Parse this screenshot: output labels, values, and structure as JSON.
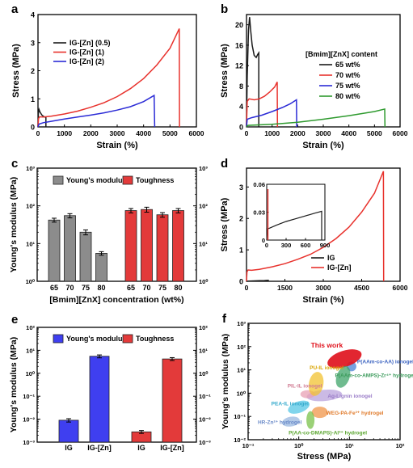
{
  "colors": {
    "black": "#1a1a1a",
    "red": "#e8322d",
    "blue": "#2b2bd6",
    "green": "#2e9a2e",
    "grey": "#8c8c8c",
    "red_bar": "#e33a3a",
    "blue_bar": "#3f3ff0"
  },
  "chart_data": [
    {
      "panel": "a",
      "type": "line",
      "xlabel": "Strain (%)",
      "ylabel": "Stress (MPa)",
      "xlim": [
        0,
        6000
      ],
      "ylim": [
        0,
        4
      ],
      "xticks": [
        0,
        1000,
        2000,
        3000,
        4000,
        5000,
        6000
      ],
      "yticks": [
        0,
        1,
        2,
        3,
        4
      ],
      "legend_position": "top-left",
      "series": [
        {
          "name": "IG-[Zn] (0.5)",
          "color_key": "black",
          "points": [
            [
              0,
              0
            ],
            [
              15,
              0.5
            ],
            [
              40,
              0.62
            ],
            [
              80,
              0.52
            ],
            [
              150,
              0.42
            ],
            [
              230,
              0.36
            ],
            [
              300,
              0.34
            ],
            [
              300,
              0
            ]
          ]
        },
        {
          "name": "IG-[Zn] (1)",
          "color_key": "red",
          "points": [
            [
              0,
              0
            ],
            [
              20,
              0.3
            ],
            [
              60,
              0.36
            ],
            [
              200,
              0.35
            ],
            [
              500,
              0.38
            ],
            [
              1000,
              0.46
            ],
            [
              1500,
              0.56
            ],
            [
              2000,
              0.7
            ],
            [
              2500,
              0.86
            ],
            [
              3000,
              1.08
            ],
            [
              3500,
              1.36
            ],
            [
              4000,
              1.72
            ],
            [
              4500,
              2.2
            ],
            [
              5000,
              2.8
            ],
            [
              5350,
              3.5
            ],
            [
              5360,
              0
            ]
          ]
        },
        {
          "name": "IG-[Zn] (2)",
          "color_key": "blue",
          "points": [
            [
              0,
              0
            ],
            [
              40,
              0.1
            ],
            [
              200,
              0.15
            ],
            [
              500,
              0.2
            ],
            [
              1000,
              0.28
            ],
            [
              1500,
              0.35
            ],
            [
              2000,
              0.42
            ],
            [
              2500,
              0.5
            ],
            [
              3000,
              0.6
            ],
            [
              3500,
              0.72
            ],
            [
              4000,
              0.9
            ],
            [
              4400,
              1.12
            ],
            [
              4420,
              0
            ]
          ]
        }
      ]
    },
    {
      "panel": "b",
      "type": "line",
      "xlabel": "Strain (%)",
      "ylabel": "Stress (MPa)",
      "xlim": [
        0,
        6000
      ],
      "ylim": [
        0,
        22
      ],
      "xticks": [
        0,
        1000,
        2000,
        3000,
        4000,
        5000,
        6000
      ],
      "yticks": [
        0,
        4,
        8,
        12,
        16,
        20
      ],
      "legend_title": "[Bmim][ZnX] content",
      "legend_position": "right",
      "series": [
        {
          "name": "65 wt%",
          "color_key": "black",
          "points": [
            [
              0,
              0
            ],
            [
              30,
              10
            ],
            [
              80,
              19
            ],
            [
              120,
              21.5
            ],
            [
              160,
              19
            ],
            [
              220,
              16
            ],
            [
              300,
              14
            ],
            [
              380,
              13.6
            ],
            [
              440,
              14.2
            ],
            [
              480,
              14.5
            ],
            [
              480,
              0
            ]
          ]
        },
        {
          "name": "70 wt%",
          "color_key": "red",
          "points": [
            [
              0,
              0
            ],
            [
              30,
              5
            ],
            [
              100,
              5.5
            ],
            [
              300,
              5.3
            ],
            [
              500,
              5.5
            ],
            [
              700,
              6
            ],
            [
              900,
              6.8
            ],
            [
              1100,
              7.8
            ],
            [
              1200,
              8.8
            ],
            [
              1210,
              0
            ]
          ]
        },
        {
          "name": "75 wt%",
          "color_key": "blue",
          "points": [
            [
              0,
              0
            ],
            [
              30,
              1.5
            ],
            [
              200,
              1.8
            ],
            [
              600,
              2.3
            ],
            [
              1000,
              3
            ],
            [
              1400,
              3.8
            ],
            [
              1700,
              4.5
            ],
            [
              1950,
              5.3
            ],
            [
              1960,
              0
            ]
          ]
        },
        {
          "name": "80 wt%",
          "color_key": "green",
          "points": [
            [
              0,
              0
            ],
            [
              50,
              0.3
            ],
            [
              1000,
              0.5
            ],
            [
              2000,
              0.9
            ],
            [
              3000,
              1.5
            ],
            [
              4000,
              2.2
            ],
            [
              5000,
              3.0
            ],
            [
              5400,
              3.5
            ],
            [
              5410,
              0
            ]
          ]
        }
      ]
    },
    {
      "panel": "c",
      "type": "bar",
      "xlabel": "[Bmim][ZnX] concentration (wt%)",
      "ylabel": "Young's modulus (MPa)",
      "yscale": "log",
      "ylim": [
        1,
        1000
      ],
      "yticklabels": [
        "10⁰",
        "10¹",
        "10²",
        "10³"
      ],
      "legend_position": "top",
      "groups": [
        {
          "name": "Young's modulus",
          "color_key": "grey",
          "categories": [
            "65",
            "70",
            "75",
            "80"
          ],
          "values": [
            42,
            55,
            20,
            5.5
          ],
          "errors": [
            5,
            7,
            3,
            0.6
          ]
        },
        {
          "name": "Toughness",
          "color_key": "red_bar",
          "categories": [
            "65",
            "70",
            "75",
            "80"
          ],
          "values": [
            75,
            80,
            58,
            75
          ],
          "errors": [
            10,
            12,
            8,
            10
          ]
        }
      ]
    },
    {
      "panel": "d",
      "type": "line",
      "xlabel": "Strain (%)",
      "ylabel": "Stress (MPa)",
      "xlim": [
        0,
        6000
      ],
      "ylim": [
        0,
        3.6
      ],
      "xticks": [
        0,
        1500,
        3000,
        4500,
        6000
      ],
      "xticklabels": [
        "0",
        "1500",
        "3000",
        "4500",
        "6000"
      ],
      "yticks": [
        0,
        1,
        2,
        3
      ],
      "legend_position": "bottom-right",
      "series": [
        {
          "name": "IG",
          "color_key": "black",
          "points": [
            [
              0,
              0
            ],
            [
              100,
              0.005
            ],
            [
              300,
              0.012
            ],
            [
              500,
              0.018
            ],
            [
              700,
              0.024
            ],
            [
              850,
              0.03
            ],
            [
              850,
              0
            ]
          ]
        },
        {
          "name": "IG-[Zn]",
          "color_key": "red",
          "points": [
            [
              0,
              0
            ],
            [
              20,
              0.3
            ],
            [
              60,
              0.36
            ],
            [
              200,
              0.35
            ],
            [
              500,
              0.38
            ],
            [
              1000,
              0.46
            ],
            [
              1500,
              0.56
            ],
            [
              2000,
              0.7
            ],
            [
              2500,
              0.86
            ],
            [
              3000,
              1.08
            ],
            [
              3500,
              1.36
            ],
            [
              4000,
              1.72
            ],
            [
              4500,
              2.2
            ],
            [
              5000,
              2.8
            ],
            [
              5350,
              3.5
            ],
            [
              5360,
              0
            ]
          ]
        }
      ],
      "inset": {
        "xlim": [
          0,
          900
        ],
        "ylim": [
          0,
          0.06
        ],
        "xticks": [
          0,
          300,
          600,
          900
        ],
        "yticks": [
          0,
          0.03,
          0.06
        ],
        "yticklabels": [
          "0",
          "0.03",
          "0.06"
        ],
        "points": [
          [
            0,
            0
          ],
          [
            10,
            0.012
          ],
          [
            50,
            0.013
          ],
          [
            150,
            0.016
          ],
          [
            300,
            0.02
          ],
          [
            450,
            0.023
          ],
          [
            600,
            0.026
          ],
          [
            750,
            0.029
          ],
          [
            850,
            0.031
          ],
          [
            850,
            0
          ]
        ]
      }
    },
    {
      "panel": "e",
      "type": "bar",
      "ylabel": "Young's modulus (MPa)",
      "yscale": "log",
      "ylim": [
        0.001,
        100
      ],
      "yticklabels": [
        "10⁻³",
        "10⁻²",
        "10⁻¹",
        "10⁰",
        "10¹",
        "10²"
      ],
      "legend_position": "top",
      "groups": [
        {
          "name": "Young's modulus",
          "color_key": "blue_bar",
          "categories": [
            "IG",
            "IG-[Zn]"
          ],
          "values": [
            0.009,
            5.5
          ],
          "errors": [
            0.0015,
            0.8
          ]
        },
        {
          "name": "Toughness",
          "color_key": "red_bar",
          "categories": [
            "IG",
            "IG-[Zn]"
          ],
          "values": [
            0.0028,
            4.2
          ],
          "errors": [
            0.0004,
            0.6
          ]
        }
      ]
    },
    {
      "panel": "f",
      "type": "scatter",
      "xlabel": "Stress (MPa)",
      "ylabel": "Young's modulus (MPa)",
      "xscale": "log",
      "yscale": "log",
      "xlim": [
        0.1,
        100
      ],
      "ylim": [
        0.01,
        1000
      ],
      "xticklabels": [
        "10⁻¹",
        "10⁰",
        "10¹",
        "10²"
      ],
      "yticklabels": [
        "10⁻²",
        "10⁻¹",
        "10⁰",
        "10¹",
        "10²",
        "10³"
      ],
      "regions": [
        {
          "label": "This work",
          "x": 8,
          "y": 30,
          "color": "#e0141e"
        },
        {
          "label": "P(AAm-co-AA) ionogel",
          "x": 11,
          "y": 14,
          "color": "#4a82d6"
        },
        {
          "label": "P(AAm-co-AMPS)-Zr⁴⁺ hydrogel",
          "x": 7.5,
          "y": 5,
          "color": "#3fa46a"
        },
        {
          "label": "PU-IL ionogel",
          "x": 2.2,
          "y": 2.5,
          "color": "#f2c230"
        },
        {
          "label": "Ag-Lignin ionogel",
          "x": 3.2,
          "y": 0.8,
          "color": "#b9a3dc"
        },
        {
          "label": "PIL-IL ionogel",
          "x": 1.5,
          "y": 0.9,
          "color": "#e8a0b4"
        },
        {
          "label": "PEA-IL ionogel",
          "x": 1.0,
          "y": 0.25,
          "color": "#56c7e6"
        },
        {
          "label": "WEG-PA-Fe³⁺ hydrogel",
          "x": 2.6,
          "y": 0.15,
          "color": "#f0964a"
        },
        {
          "label": "HR-Zn²⁺ hydrogel",
          "x": 0.7,
          "y": 0.06,
          "color": "#9ab8e0"
        },
        {
          "label": "P(AA-co-DMAPS)-Al³⁺ hydrogel",
          "x": 1.7,
          "y": 0.07,
          "color": "#7ac24a"
        }
      ]
    }
  ]
}
